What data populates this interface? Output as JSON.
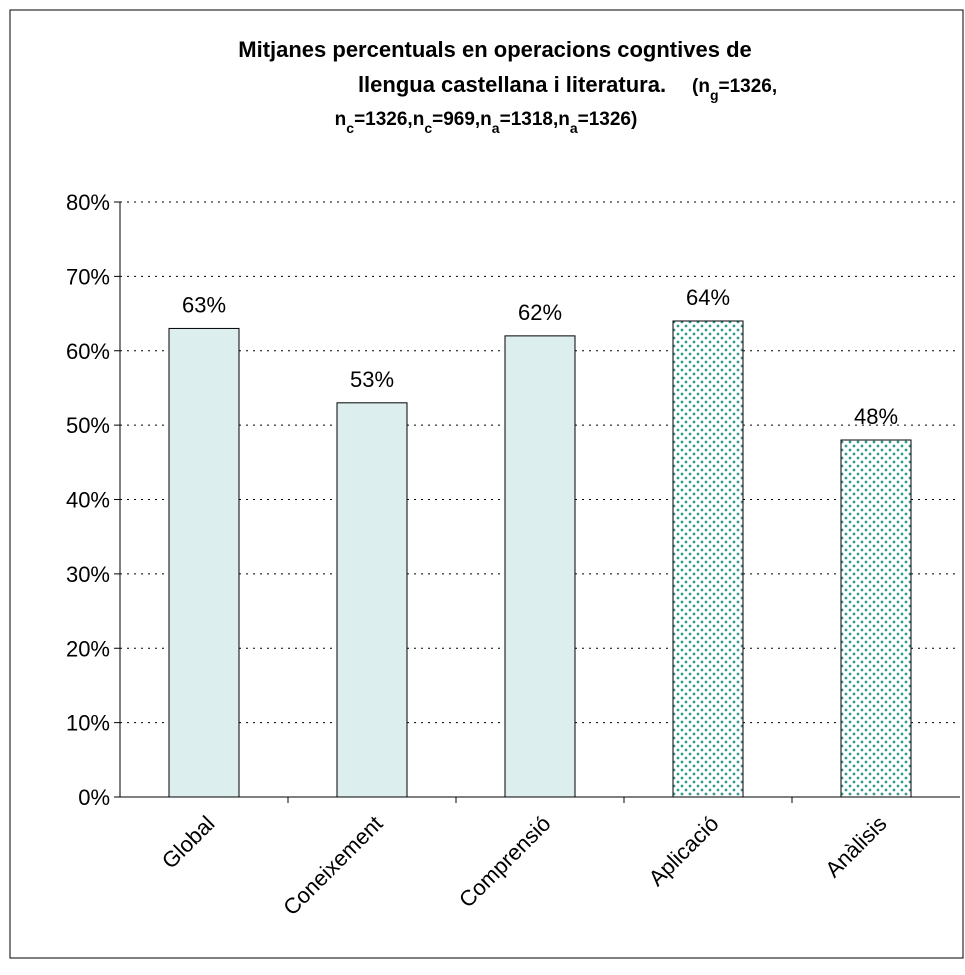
{
  "chart_data": {
    "type": "bar",
    "title": [
      "Mitjanes percentuals en operacions cogntives de",
      "llengua castellana i literatura."
    ],
    "annotation": [
      [
        {
          "text": "(n",
          "sub": false
        },
        {
          "text": "g",
          "sub": true
        },
        {
          "text": "=1326,",
          "sub": false
        }
      ],
      [
        {
          "text": "n",
          "sub": false
        },
        {
          "text": "c",
          "sub": true
        },
        {
          "text": "=1326,n",
          "sub": false
        },
        {
          "text": "c",
          "sub": true
        },
        {
          "text": "=969,n",
          "sub": false
        },
        {
          "text": "a",
          "sub": true
        },
        {
          "text": "=1318,n",
          "sub": false
        },
        {
          "text": "a",
          "sub": true
        },
        {
          "text": "=1326)",
          "sub": false
        }
      ]
    ],
    "categories": [
      "Global",
      "Coneixement",
      "Comprensió",
      "Aplicació",
      "Anàlisis"
    ],
    "values": [
      63,
      53,
      62,
      64,
      48
    ],
    "value_labels": [
      "63%",
      "53%",
      "62%",
      "64%",
      "48%"
    ],
    "colors": [
      "#dceeed",
      "#dceeed",
      "#dceeed",
      "#2e9c8e",
      "#2e9c8e"
    ],
    "patterns": [
      false,
      false,
      false,
      true,
      true
    ],
    "ylim": [
      0,
      80
    ],
    "yticks": [
      {
        "value": 0,
        "label": "0%"
      },
      {
        "value": 10,
        "label": "10%"
      },
      {
        "value": 20,
        "label": "20%"
      },
      {
        "value": 30,
        "label": "30%"
      },
      {
        "value": 40,
        "label": "40%"
      },
      {
        "value": 50,
        "label": "50%"
      },
      {
        "value": 60,
        "label": "60%"
      },
      {
        "value": 70,
        "label": "70%"
      },
      {
        "value": 80,
        "label": "80%"
      }
    ],
    "grid": true
  }
}
